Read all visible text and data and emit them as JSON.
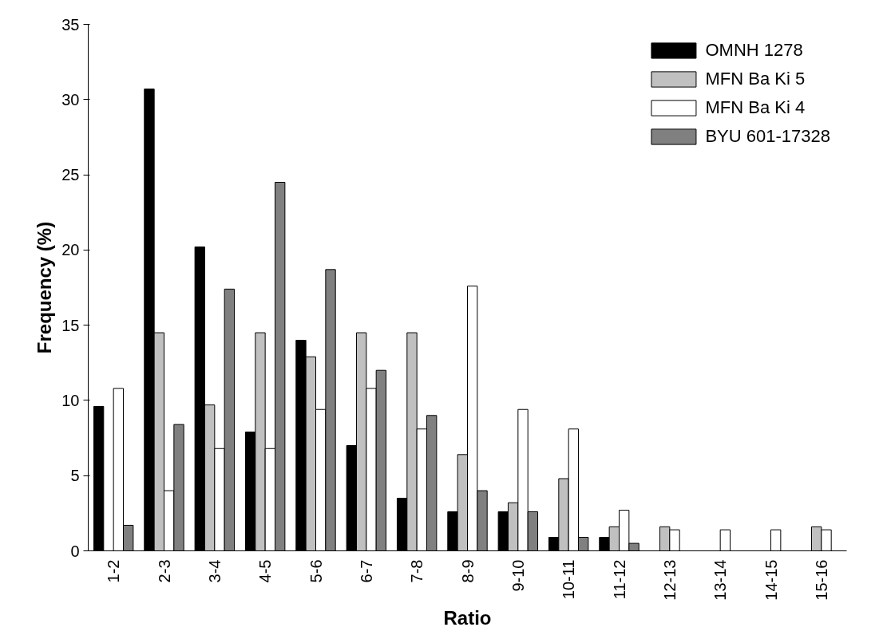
{
  "chart_data": {
    "type": "bar",
    "xlabel": "Ratio",
    "ylabel": "Frequency (%)",
    "categories": [
      "1-2",
      "2-3",
      "3-4",
      "4-5",
      "5-6",
      "6-7",
      "7-8",
      "8-9",
      "9-10",
      "10-11",
      "11-12",
      "12-13",
      "13-14",
      "14-15",
      "15-16"
    ],
    "series": [
      {
        "name": "OMNH 1278",
        "color": "#000000",
        "values": [
          9.6,
          30.7,
          20.2,
          7.9,
          14.0,
          7.0,
          3.5,
          2.6,
          2.6,
          0.9,
          0.9,
          null,
          null,
          null,
          null
        ]
      },
      {
        "name": "MFN Ba Ki 5",
        "color": "#c0c0c0",
        "values": [
          null,
          14.5,
          9.7,
          14.5,
          12.9,
          14.5,
          14.5,
          6.4,
          3.2,
          4.8,
          1.6,
          1.6,
          null,
          null,
          1.6
        ]
      },
      {
        "name": "MFN Ba Ki 4",
        "color": "#ffffff",
        "values": [
          10.8,
          4.0,
          6.8,
          6.8,
          9.4,
          10.8,
          8.1,
          17.6,
          9.4,
          8.1,
          2.7,
          1.4,
          1.4,
          1.4,
          1.4
        ]
      },
      {
        "name": "BYU 601-17328",
        "color": "#808080",
        "values": [
          1.7,
          8.4,
          17.4,
          24.5,
          18.7,
          12.0,
          9.0,
          4.0,
          2.6,
          0.9,
          0.5,
          null,
          null,
          null,
          null
        ]
      }
    ],
    "ylim": [
      0,
      35
    ],
    "yticks": [
      0,
      5,
      10,
      15,
      20,
      25,
      30,
      35
    ],
    "grid": false,
    "legend": "top right"
  }
}
